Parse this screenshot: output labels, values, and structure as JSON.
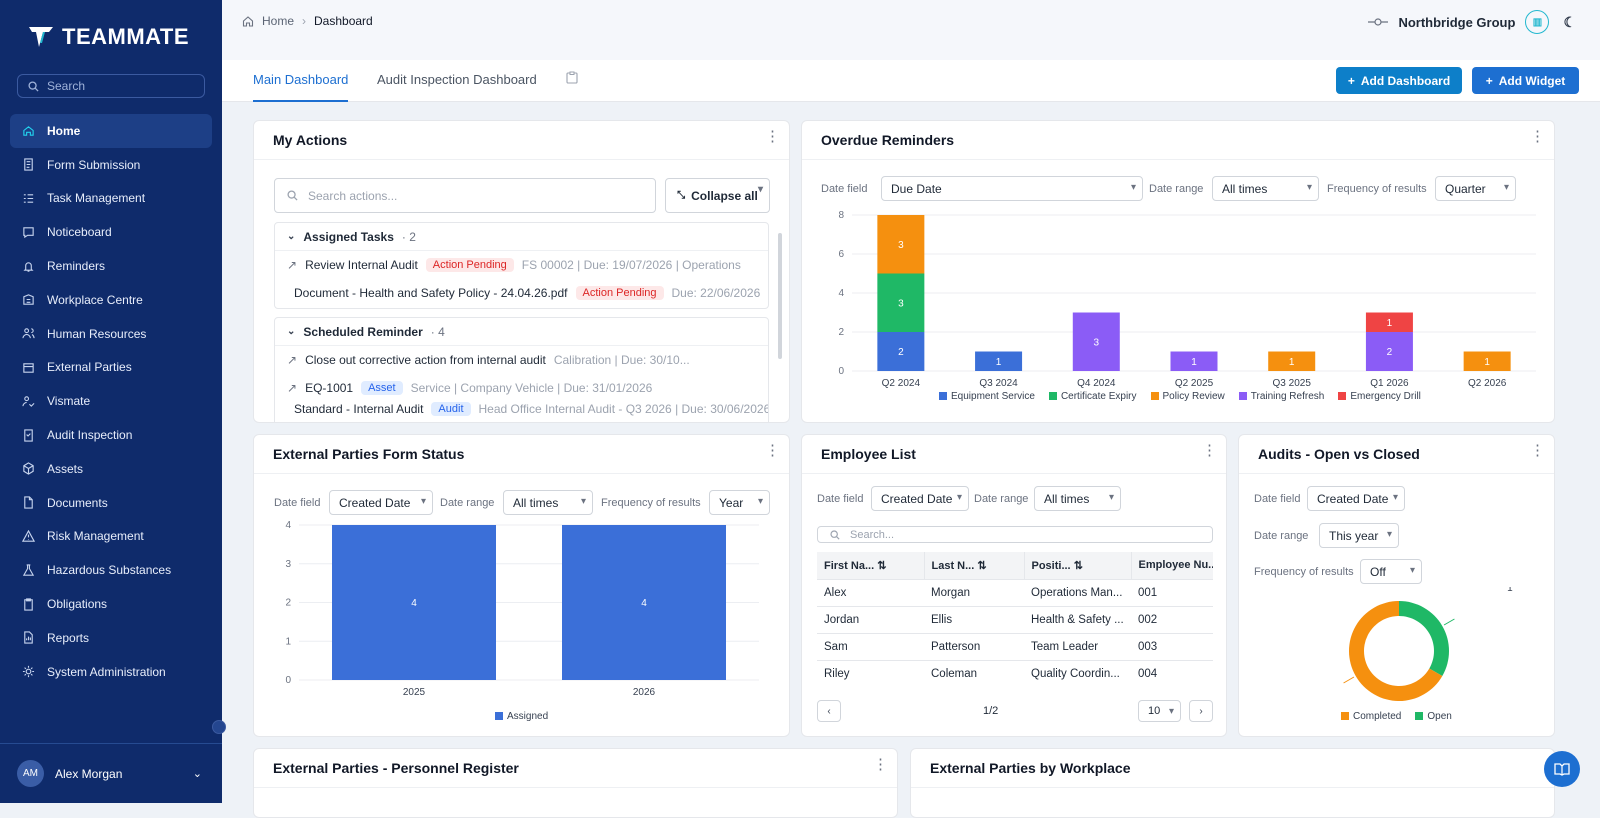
{
  "app": {
    "brand": "TEAMMATE"
  },
  "sidebar": {
    "search_placeholder": "Search",
    "items": [
      {
        "label": "Home",
        "icon": "home-icon",
        "active": true
      },
      {
        "label": "Form Submission",
        "icon": "form-icon"
      },
      {
        "label": "Task Management",
        "icon": "tasks-icon"
      },
      {
        "label": "Noticeboard",
        "icon": "noticeboard-icon"
      },
      {
        "label": "Reminders",
        "icon": "bell-icon"
      },
      {
        "label": "Workplace Centre",
        "icon": "building-icon"
      },
      {
        "label": "Human Resources",
        "icon": "users-icon"
      },
      {
        "label": "External Parties",
        "icon": "external-icon"
      },
      {
        "label": "Vismate",
        "icon": "user-check-icon"
      },
      {
        "label": "Audit Inspection",
        "icon": "audit-icon"
      },
      {
        "label": "Assets",
        "icon": "cube-icon"
      },
      {
        "label": "Documents",
        "icon": "document-icon"
      },
      {
        "label": "Risk Management",
        "icon": "warning-icon"
      },
      {
        "label": "Hazardous Substances",
        "icon": "flask-icon"
      },
      {
        "label": "Obligations",
        "icon": "clipboard-icon"
      },
      {
        "label": "Reports",
        "icon": "report-icon"
      },
      {
        "label": "System Administration",
        "icon": "gear-icon"
      }
    ],
    "user": {
      "initials": "AM",
      "name": "Alex Morgan"
    }
  },
  "header": {
    "breadcrumb": {
      "home": "Home",
      "current": "Dashboard"
    },
    "org_name": "Northbridge Group"
  },
  "tabs": {
    "items": [
      "Main Dashboard",
      "Audit Inspection Dashboard"
    ],
    "add_dashboard": "Add Dashboard",
    "add_widget": "Add Widget"
  },
  "my_actions": {
    "title": "My Actions",
    "search_placeholder": "Search actions...",
    "collapse_label": "Collapse all",
    "assigned": {
      "title": "Assigned Tasks",
      "count": "· 2",
      "rows": [
        {
          "name": "Review Internal Audit",
          "badge": "Action Pending",
          "meta": "FS 00002 | Due: 19/07/2026 | Operations"
        },
        {
          "name": "Document - Health and Safety Policy - 24.04.26.pdf",
          "badge": "Action Pending",
          "meta": "Due: 22/06/2026"
        }
      ]
    },
    "scheduled": {
      "title": "Scheduled Reminder",
      "count": "· 4",
      "rows": [
        {
          "name": "Close out corrective action from internal audit",
          "badge": "",
          "meta": "Calibration | Due: 30/10..."
        },
        {
          "name": "EQ-1001",
          "badge": "Asset",
          "meta": "Service | Company Vehicle | Due: 31/01/2026"
        },
        {
          "name": "Standard - Internal Audit",
          "badge": "Audit",
          "meta": "Head Office Internal Audit - Q3 2026 | Due: 30/06/2026"
        }
      ]
    }
  },
  "overdue": {
    "title": "Overdue Reminders",
    "filters": {
      "date_field_label": "Date field",
      "date_field": "Due Date",
      "date_range_label": "Date range",
      "date_range": "All times",
      "frequency_label": "Frequency of results",
      "frequency": "Quarter"
    }
  },
  "ext_form_status": {
    "title": "External Parties Form Status",
    "filters": {
      "date_field_label": "Date field",
      "date_field": "Created Date",
      "date_range_label": "Date range",
      "date_range": "All times",
      "frequency_label": "Frequency of results",
      "frequency": "Year"
    }
  },
  "employee_list": {
    "title": "Employee List",
    "filters": {
      "date_field_label": "Date field",
      "date_field": "Created Date",
      "date_range_label": "Date range",
      "date_range": "All times"
    },
    "search_placeholder": "Search...",
    "columns": [
      "First Na...",
      "Last N...",
      "Positi...",
      "Employee Nu..."
    ],
    "rows": [
      [
        "Alex",
        "Morgan",
        "Operations Man...",
        "001"
      ],
      [
        "Jordan",
        "Ellis",
        "Health & Safety ...",
        "002"
      ],
      [
        "Sam",
        "Patterson",
        "Team Leader",
        "003"
      ],
      [
        "Riley",
        "Coleman",
        "Quality Coordin...",
        "004"
      ]
    ],
    "page": "1/2",
    "page_size": "10"
  },
  "audits": {
    "title": "Audits - Open vs Closed",
    "filters": {
      "date_field_label": "Date field",
      "date_field": "Created Date",
      "date_range_label": "Date range",
      "date_range": "This year",
      "frequency_label": "Frequency of results",
      "frequency": "Off"
    }
  },
  "bottom_cards": {
    "personnel": "External Parties - Personnel Register",
    "by_workplace": "External Parties by Workplace"
  },
  "colors": {
    "sidebar": "#0f2b6b",
    "accent": "#1d6fd1",
    "blue": "#3b6fd8",
    "green": "#1fb866",
    "orange": "#f5900f",
    "purple": "#8b5cf6",
    "red": "#ef4444"
  },
  "chart_data": [
    {
      "id": "overdue",
      "type": "bar",
      "stacked": true,
      "categories": [
        "Q2 2024",
        "Q3 2024",
        "Q4 2024",
        "Q2 2025",
        "Q3 2025",
        "Q1 2026",
        "Q2 2026"
      ],
      "series": [
        {
          "name": "Equipment Service",
          "color": "#3b6fd8",
          "values": [
            2,
            1,
            0,
            0,
            0,
            0,
            0
          ]
        },
        {
          "name": "Certificate Expiry",
          "color": "#1fb866",
          "values": [
            3,
            0,
            0,
            0,
            0,
            0,
            0
          ]
        },
        {
          "name": "Policy Review",
          "color": "#f5900f",
          "values": [
            3,
            0,
            0,
            0,
            1,
            0,
            1
          ]
        },
        {
          "name": "Training Refresh",
          "color": "#8b5cf6",
          "values": [
            0,
            0,
            3,
            1,
            0,
            2,
            0
          ]
        },
        {
          "name": "Emergency Drill",
          "color": "#ef4444",
          "values": [
            0,
            0,
            0,
            0,
            0,
            1,
            0
          ]
        }
      ],
      "ylim": [
        0,
        8
      ],
      "yticks": [
        0,
        2,
        4,
        6,
        8
      ],
      "legend": "bottom"
    },
    {
      "id": "ext_form",
      "type": "bar",
      "categories": [
        "2025",
        "2026"
      ],
      "series": [
        {
          "name": "Assigned",
          "color": "#3b6fd8",
          "values": [
            4,
            4
          ]
        }
      ],
      "ylim": [
        0,
        4
      ],
      "yticks": [
        0,
        1,
        2,
        3,
        4
      ],
      "legend": "bottom"
    },
    {
      "id": "audits",
      "type": "pie",
      "donut": true,
      "slices": [
        {
          "name": "Completed",
          "value": 2,
          "color": "#f5900f"
        },
        {
          "name": "Open",
          "value": 1,
          "color": "#1fb866"
        }
      ],
      "legend": "bottom"
    }
  ]
}
